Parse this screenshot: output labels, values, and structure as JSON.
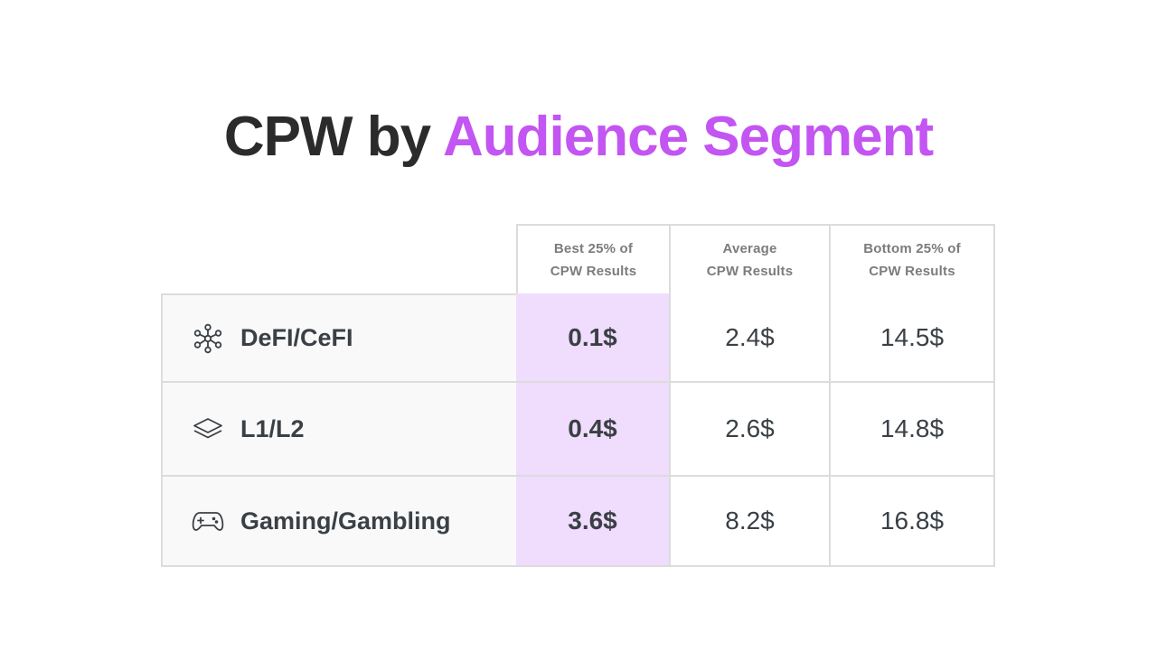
{
  "title": {
    "part1": "CPW by ",
    "part2": "Audience Segment",
    "accent_color": "#c355f2"
  },
  "chart_data": {
    "type": "table",
    "title": "CPW by Audience Segment",
    "columns": [
      {
        "line1": "Best 25% of",
        "line2": "CPW Results"
      },
      {
        "line1": "Average",
        "line2": "CPW Results"
      },
      {
        "line1": "Bottom 25% of",
        "line2": "CPW Results"
      }
    ],
    "rows": [
      {
        "label": "DeFI/CeFI",
        "icon": "network-nodes-icon",
        "values": [
          "0.1$",
          "2.4$",
          "14.5$"
        ]
      },
      {
        "label": "L1/L2",
        "icon": "layers-icon",
        "values": [
          "0.4$",
          "2.6$",
          "14.8$"
        ]
      },
      {
        "label": "Gaming/Gambling",
        "icon": "gamepad-icon",
        "values": [
          "3.6$",
          "8.2$",
          "16.8$"
        ]
      }
    ],
    "highlight_column": 0,
    "highlight_color": "#f0dcfc"
  }
}
